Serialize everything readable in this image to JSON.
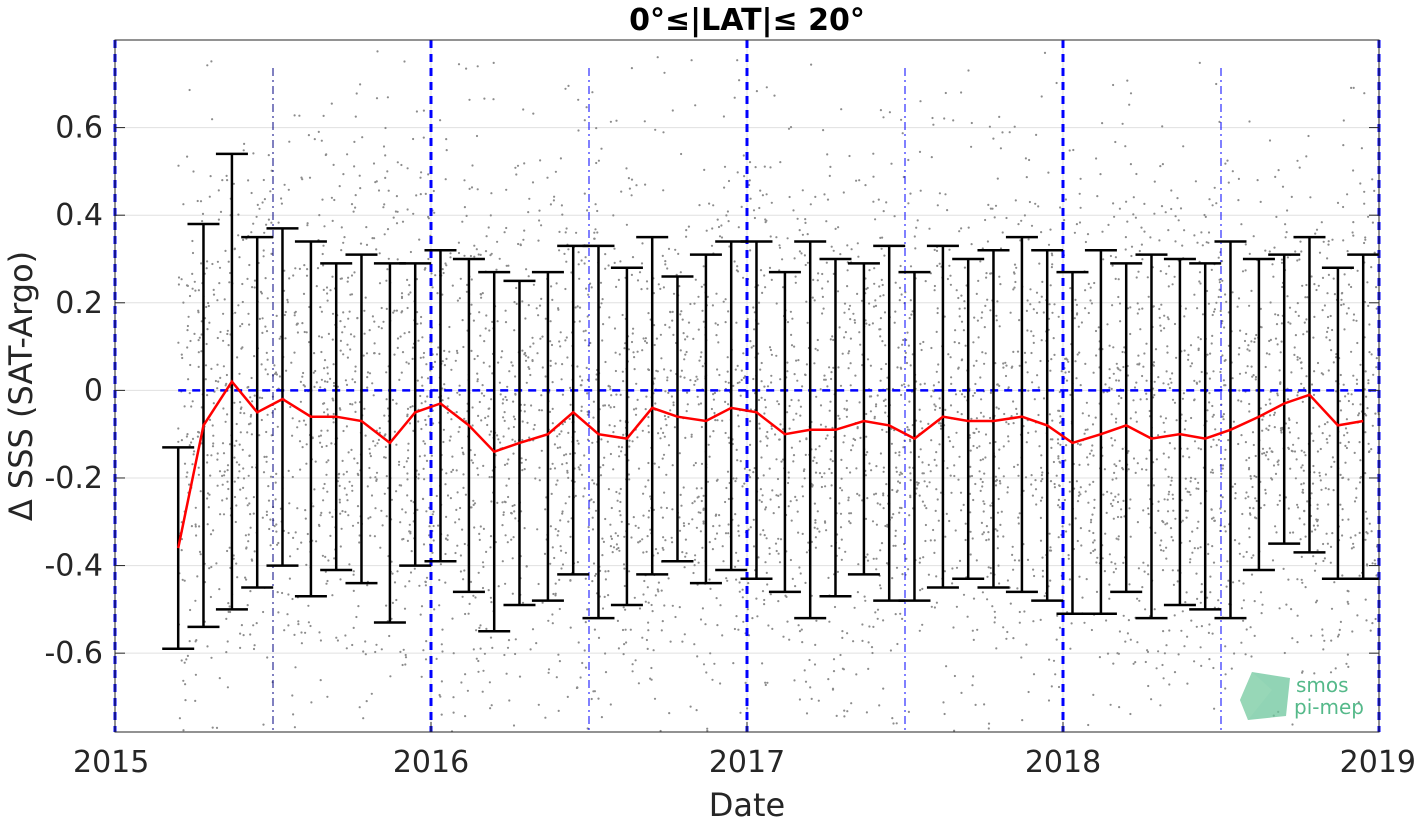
{
  "chart_data": {
    "type": "scatter",
    "title": "0°≤|LAT|≤ 20°",
    "xlabel": "Date",
    "ylabel": "Δ SSS (SAT-Argo)",
    "xlim": [
      2015.0,
      2019.0
    ],
    "ylim": [
      -0.78,
      0.8
    ],
    "xticks": [
      2015,
      2016,
      2017,
      2018,
      2019
    ],
    "xtick_labels": [
      "2015",
      "2016",
      "2017",
      "2018",
      "2019"
    ],
    "yticks": [
      0.6,
      0.4,
      0.2,
      0,
      -0.2,
      -0.4,
      -0.6
    ],
    "ytick_labels": [
      "0.6",
      "0.4",
      "0.2",
      "0",
      "-0.2",
      "-0.4",
      "-0.6"
    ],
    "grid": true,
    "zero_line": 0,
    "year_boundaries": [
      2015,
      2016,
      2017,
      2018,
      2019
    ],
    "half_year_lines": [
      2015.5,
      2016.5,
      2017.5,
      2018.5
    ],
    "scatter_points": "dense gray individual SAT-Argo differences",
    "series": [
      {
        "style": "red-line",
        "x": [
          2015.2,
          2015.28,
          2015.37,
          2015.45,
          2015.53,
          2015.62,
          2015.7,
          2015.78,
          2015.87,
          2015.95,
          2016.03,
          2016.12,
          2016.2,
          2016.28,
          2016.37,
          2016.45,
          2016.53,
          2016.62,
          2016.7,
          2016.78,
          2016.87,
          2016.95,
          2017.03,
          2017.12,
          2017.2,
          2017.28,
          2017.37,
          2017.45,
          2017.53,
          2017.62,
          2017.7,
          2017.78,
          2017.87,
          2017.95,
          2018.03,
          2018.12,
          2018.2,
          2018.28,
          2018.37,
          2018.45,
          2018.53,
          2018.62,
          2018.7,
          2018.78,
          2018.87,
          2018.95
        ],
        "y": [
          -0.36,
          -0.08,
          0.02,
          -0.05,
          -0.02,
          -0.06,
          -0.06,
          -0.07,
          -0.12,
          -0.05,
          -0.03,
          -0.08,
          -0.14,
          -0.12,
          -0.1,
          -0.05,
          -0.1,
          -0.11,
          -0.04,
          -0.06,
          -0.07,
          -0.04,
          -0.05,
          -0.1,
          -0.09,
          -0.09,
          -0.07,
          -0.08,
          -0.11,
          -0.06,
          -0.07,
          -0.07,
          -0.06,
          -0.08,
          -0.12,
          -0.1,
          -0.08,
          -0.11,
          -0.1,
          -0.11,
          -0.09,
          -0.06,
          -0.03,
          -0.01,
          -0.08,
          -0.07
        ],
        "err_low": [
          -0.59,
          -0.54,
          -0.5,
          -0.45,
          -0.4,
          -0.47,
          -0.41,
          -0.44,
          -0.53,
          -0.4,
          -0.39,
          -0.46,
          -0.55,
          -0.49,
          -0.48,
          -0.42,
          -0.52,
          -0.49,
          -0.42,
          -0.39,
          -0.44,
          -0.41,
          -0.43,
          -0.46,
          -0.52,
          -0.47,
          -0.42,
          -0.48,
          -0.48,
          -0.45,
          -0.43,
          -0.45,
          -0.46,
          -0.48,
          -0.51,
          -0.51,
          -0.46,
          -0.52,
          -0.49,
          -0.5,
          -0.52,
          -0.41,
          -0.35,
          -0.37,
          -0.43,
          -0.43
        ],
        "err_high": [
          -0.13,
          0.38,
          0.54,
          0.35,
          0.37,
          0.34,
          0.29,
          0.31,
          0.29,
          0.29,
          0.32,
          0.3,
          0.27,
          0.25,
          0.27,
          0.33,
          0.33,
          0.28,
          0.35,
          0.26,
          0.31,
          0.34,
          0.34,
          0.27,
          0.34,
          0.3,
          0.29,
          0.33,
          0.27,
          0.33,
          0.3,
          0.32,
          0.35,
          0.32,
          0.27,
          0.32,
          0.29,
          0.31,
          0.3,
          0.29,
          0.34,
          0.3,
          0.31,
          0.35,
          0.28,
          0.31
        ]
      }
    ],
    "colors": {
      "mean_line": "#ff0000",
      "error_bars": "#000000",
      "scatter": "#8c8c8c",
      "reference_lines": "#0000ff",
      "grid": "#e0e0e0"
    }
  },
  "logo": {
    "line1": "smos",
    "line2": "pi-mep"
  }
}
